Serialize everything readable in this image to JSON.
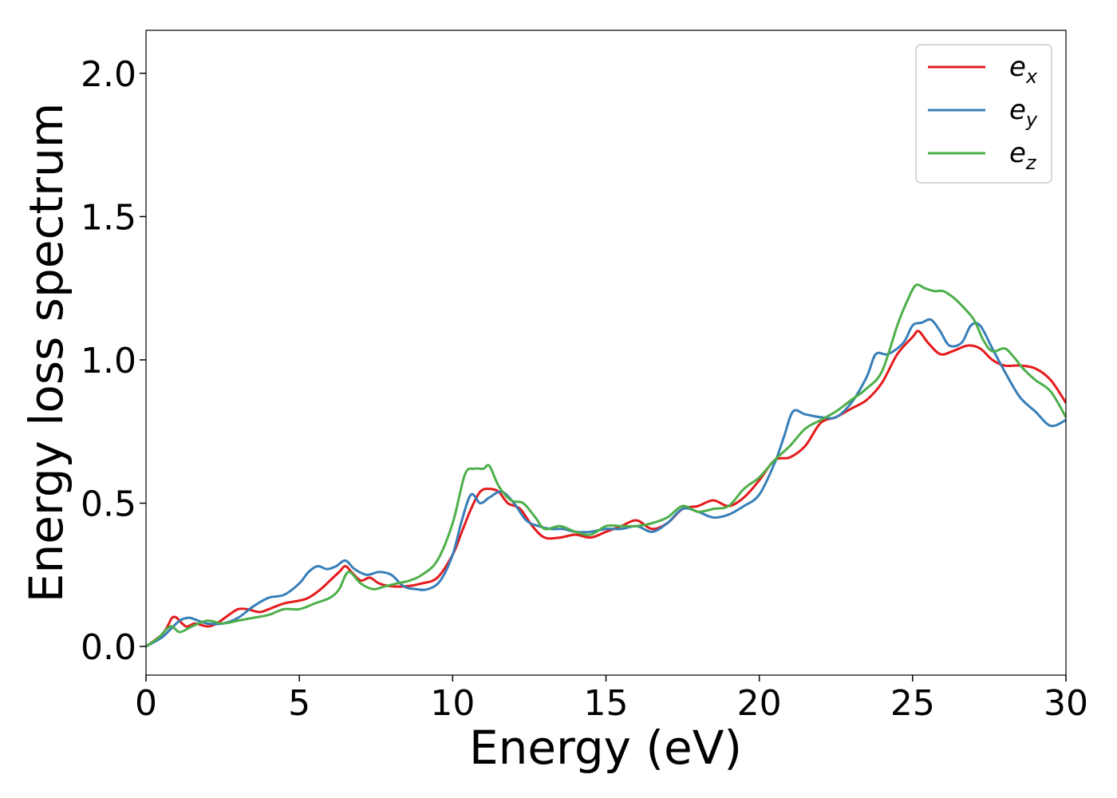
{
  "chart_data": {
    "type": "line",
    "title": "",
    "xlabel": "Energy (eV)",
    "ylabel": "Energy loss spectrum",
    "xlim": [
      0,
      30
    ],
    "ylim": [
      -0.1,
      2.15
    ],
    "xticks": [
      0,
      5,
      10,
      15,
      20,
      25,
      30
    ],
    "xtick_labels": [
      "0",
      "5",
      "10",
      "15",
      "20",
      "25",
      "30"
    ],
    "yticks": [
      0.0,
      0.5,
      1.0,
      1.5,
      2.0
    ],
    "ytick_labels": [
      "0.0",
      "0.5",
      "1.0",
      "1.5",
      "2.0"
    ],
    "grid": false,
    "legend_position": "top-right",
    "series": [
      {
        "name": "x",
        "color": "#e41a1c",
        "x": [
          0,
          0.5,
          0.7,
          0.85,
          1.0,
          1.3,
          1.6,
          2.0,
          2.3,
          2.7,
          3.0,
          3.3,
          3.7,
          4.0,
          4.5,
          5.0,
          5.3,
          5.7,
          6.0,
          6.3,
          6.5,
          6.7,
          7.0,
          7.3,
          7.6,
          8.0,
          8.5,
          9.0,
          9.5,
          10.0,
          10.3,
          10.6,
          10.9,
          11.2,
          11.5,
          11.8,
          12.2,
          12.6,
          13.0,
          13.5,
          14.0,
          14.5,
          15.0,
          15.5,
          16.0,
          16.5,
          17.0,
          17.5,
          18.0,
          18.5,
          19.0,
          19.5,
          20.0,
          20.5,
          21.0,
          21.5,
          22.0,
          22.5,
          23.0,
          23.5,
          24.0,
          24.5,
          25.0,
          25.2,
          25.5,
          25.9,
          26.3,
          26.8,
          27.2,
          27.6,
          28.0,
          28.5,
          29.0,
          29.5,
          30.0
        ],
        "y": [
          0.0,
          0.04,
          0.07,
          0.1,
          0.1,
          0.07,
          0.08,
          0.07,
          0.08,
          0.11,
          0.13,
          0.13,
          0.12,
          0.13,
          0.15,
          0.16,
          0.17,
          0.2,
          0.23,
          0.26,
          0.28,
          0.26,
          0.23,
          0.24,
          0.22,
          0.21,
          0.21,
          0.22,
          0.24,
          0.32,
          0.4,
          0.48,
          0.54,
          0.55,
          0.54,
          0.5,
          0.48,
          0.42,
          0.38,
          0.38,
          0.39,
          0.38,
          0.4,
          0.42,
          0.44,
          0.41,
          0.43,
          0.48,
          0.49,
          0.51,
          0.49,
          0.52,
          0.58,
          0.65,
          0.66,
          0.7,
          0.78,
          0.8,
          0.83,
          0.86,
          0.92,
          1.02,
          1.08,
          1.1,
          1.06,
          1.02,
          1.03,
          1.05,
          1.04,
          1.0,
          0.98,
          0.98,
          0.97,
          0.93,
          0.85
        ]
      },
      {
        "name": "y",
        "color": "#377eb8",
        "x": [
          0,
          0.5,
          0.8,
          1.1,
          1.4,
          1.7,
          2.0,
          2.5,
          3.0,
          3.5,
          4.0,
          4.5,
          5.0,
          5.3,
          5.6,
          5.9,
          6.2,
          6.5,
          6.8,
          7.2,
          7.6,
          8.0,
          8.4,
          8.8,
          9.2,
          9.6,
          10.0,
          10.3,
          10.6,
          10.9,
          11.2,
          11.6,
          12.0,
          12.4,
          12.8,
          13.2,
          13.6,
          14.0,
          14.5,
          15.0,
          15.5,
          16.0,
          16.5,
          17.0,
          17.5,
          18.0,
          18.5,
          19.0,
          19.5,
          20.0,
          20.5,
          20.8,
          21.1,
          21.5,
          22.0,
          22.5,
          23.0,
          23.5,
          23.8,
          24.2,
          24.7,
          25.0,
          25.3,
          25.6,
          25.9,
          26.2,
          26.6,
          26.9,
          27.2,
          27.6,
          28.0,
          28.5,
          29.0,
          29.5,
          30.0
        ],
        "y": [
          0.0,
          0.03,
          0.06,
          0.09,
          0.1,
          0.09,
          0.08,
          0.08,
          0.1,
          0.14,
          0.17,
          0.18,
          0.22,
          0.26,
          0.28,
          0.27,
          0.28,
          0.3,
          0.27,
          0.25,
          0.26,
          0.25,
          0.21,
          0.2,
          0.2,
          0.23,
          0.32,
          0.44,
          0.53,
          0.5,
          0.52,
          0.54,
          0.5,
          0.44,
          0.42,
          0.41,
          0.41,
          0.4,
          0.4,
          0.41,
          0.41,
          0.42,
          0.4,
          0.43,
          0.48,
          0.47,
          0.45,
          0.46,
          0.49,
          0.53,
          0.64,
          0.73,
          0.82,
          0.81,
          0.8,
          0.8,
          0.85,
          0.94,
          1.02,
          1.02,
          1.06,
          1.12,
          1.13,
          1.14,
          1.1,
          1.05,
          1.06,
          1.12,
          1.12,
          1.04,
          0.96,
          0.87,
          0.82,
          0.77,
          0.79
        ]
      },
      {
        "name": "z",
        "color": "#4daf4a",
        "x": [
          0,
          0.4,
          0.8,
          1.1,
          1.5,
          2.0,
          2.5,
          3.0,
          3.5,
          4.0,
          4.5,
          5.0,
          5.5,
          6.0,
          6.3,
          6.6,
          7.0,
          7.4,
          7.8,
          8.2,
          8.6,
          9.0,
          9.5,
          10.0,
          10.4,
          10.7,
          11.0,
          11.2,
          11.5,
          11.9,
          12.3,
          12.7,
          13.0,
          13.5,
          14.0,
          14.5,
          15.0,
          15.5,
          16.0,
          16.5,
          17.0,
          17.5,
          18.0,
          18.5,
          19.0,
          19.5,
          20.0,
          20.5,
          21.0,
          21.5,
          22.0,
          22.5,
          23.0,
          23.5,
          24.0,
          24.5,
          24.8,
          25.1,
          25.4,
          25.7,
          26.0,
          26.3,
          26.6,
          27.0,
          27.3,
          27.6,
          28.0,
          28.3,
          28.6,
          29.0,
          29.5,
          30.0
        ],
        "y": [
          0.0,
          0.03,
          0.07,
          0.05,
          0.07,
          0.09,
          0.08,
          0.09,
          0.1,
          0.11,
          0.13,
          0.13,
          0.15,
          0.17,
          0.2,
          0.26,
          0.22,
          0.2,
          0.21,
          0.22,
          0.23,
          0.25,
          0.3,
          0.43,
          0.6,
          0.62,
          0.62,
          0.63,
          0.56,
          0.51,
          0.5,
          0.45,
          0.41,
          0.42,
          0.4,
          0.39,
          0.42,
          0.42,
          0.42,
          0.43,
          0.45,
          0.49,
          0.47,
          0.48,
          0.49,
          0.55,
          0.59,
          0.65,
          0.7,
          0.76,
          0.79,
          0.82,
          0.86,
          0.9,
          0.96,
          1.12,
          1.2,
          1.26,
          1.25,
          1.24,
          1.24,
          1.22,
          1.19,
          1.14,
          1.07,
          1.03,
          1.04,
          1.01,
          0.97,
          0.93,
          0.89,
          0.8
        ]
      }
    ]
  },
  "legend": {
    "entries": [
      {
        "base": "e",
        "sub": "x"
      },
      {
        "base": "e",
        "sub": "y"
      },
      {
        "base": "e",
        "sub": "z"
      }
    ]
  }
}
